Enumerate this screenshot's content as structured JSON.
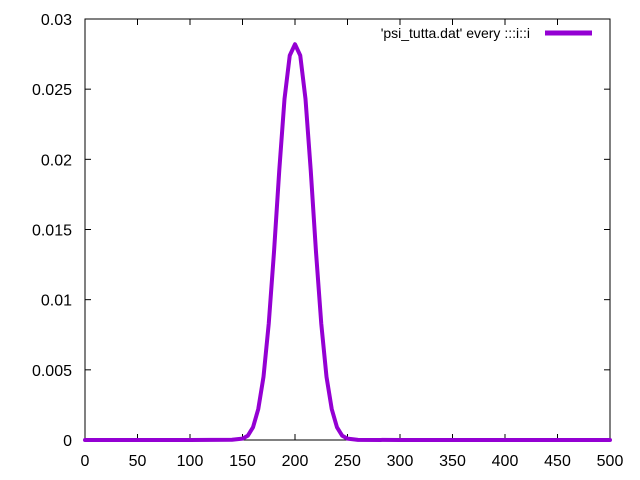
{
  "chart_data": {
    "type": "line",
    "title": "",
    "xlabel": "",
    "ylabel": "",
    "xlim": [
      0,
      500
    ],
    "ylim": [
      0,
      0.03
    ],
    "x_ticks": [
      "0",
      "50",
      "100",
      "150",
      "200",
      "250",
      "300",
      "350",
      "400",
      "450",
      "500"
    ],
    "y_ticks": [
      "0",
      "0.005",
      "0.01",
      "0.015",
      "0.02",
      "0.025",
      "0.03"
    ],
    "grid": false,
    "legend_position": "top-right",
    "series": [
      {
        "name": "'psi_tutta.dat' every :::i::i",
        "color": "#9400d3",
        "x": [
          0,
          100,
          140,
          150,
          155,
          160,
          165,
          170,
          175,
          180,
          185,
          190,
          195,
          200,
          205,
          210,
          215,
          220,
          225,
          230,
          235,
          240,
          245,
          250,
          260,
          300,
          400,
          500
        ],
        "values": [
          0,
          0,
          2e-05,
          0.0001,
          0.0003,
          0.0009,
          0.0022,
          0.0045,
          0.0083,
          0.0134,
          0.0192,
          0.0243,
          0.0274,
          0.0282,
          0.0274,
          0.0243,
          0.0192,
          0.0134,
          0.0083,
          0.0045,
          0.0022,
          0.0009,
          0.0003,
          0.0001,
          1e-05,
          0,
          0,
          0
        ]
      }
    ]
  }
}
